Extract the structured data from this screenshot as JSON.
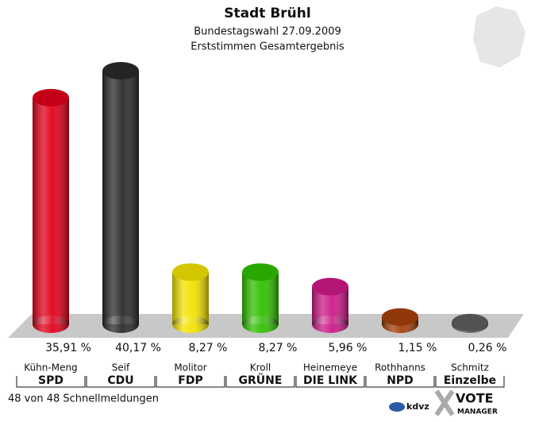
{
  "chart_data": {
    "type": "bar",
    "title": "Stadt Brühl",
    "subtitle": "Bundestagswahl 27.09.2009",
    "subtitle2": "Erststimmen Gesamtergebnis",
    "candidates": [
      "Kühn-Meng",
      "Seif",
      "Molitor",
      "Kroll",
      "Heinemeye",
      "Rothhanns",
      "Schmitz"
    ],
    "categories": [
      "SPD",
      "CDU",
      "FDP",
      "GRÜNE",
      "DIE LINK",
      "NPD",
      "Einzelbe"
    ],
    "values": [
      35.91,
      40.17,
      8.27,
      8.27,
      5.96,
      1.15,
      0.26
    ],
    "value_labels": [
      "35,91 %",
      "40,17 %",
      "8,27 %",
      "8,27 %",
      "5,96 %",
      "1,15 %",
      "0,26 %"
    ],
    "colors": [
      "#e0001a",
      "#2a2a2a",
      "#f2e200",
      "#2fbf00",
      "#cc1a88",
      "#a5400c",
      "#5e5e5e"
    ],
    "footer": "48 von 48 Schnellmeldungen",
    "logo_left": "kdvz",
    "logo_right": "VOTE",
    "logo_right2": "MANAGER"
  }
}
